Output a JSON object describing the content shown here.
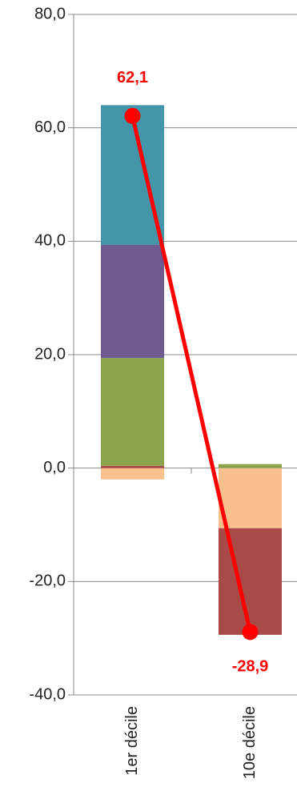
{
  "chart_data": {
    "type": "bar",
    "stacked": true,
    "categories": [
      "1er décile",
      "10e décile"
    ],
    "series": [
      {
        "color": "#f9c08e",
        "values": [
          -2.0,
          -10.6
        ]
      },
      {
        "color": "#a84a47",
        "values": [
          0.4,
          -18.8
        ]
      },
      {
        "color": "#8aa54b",
        "values": [
          19.0,
          0.7
        ]
      },
      {
        "color": "#6e5a8e",
        "values": [
          20.0,
          0
        ]
      },
      {
        "color": "#4395aa",
        "values": [
          24.6,
          0
        ]
      },
      {
        "type": "line",
        "color": "#ff0000",
        "values": [
          62.1,
          -28.9
        ],
        "value_labels": [
          "62,1",
          "-28,9"
        ]
      }
    ],
    "ylim": [
      -40,
      80
    ],
    "yticks": [
      {
        "value": -40,
        "label": "-40,0"
      },
      {
        "value": -20,
        "label": "-20,0"
      },
      {
        "value": 0,
        "label": "0,0"
      },
      {
        "value": 20,
        "label": "20,0"
      },
      {
        "value": 40,
        "label": "40,0"
      },
      {
        "value": 60,
        "label": "60,0"
      },
      {
        "value": 80,
        "label": "80,0"
      }
    ],
    "grid": true
  }
}
